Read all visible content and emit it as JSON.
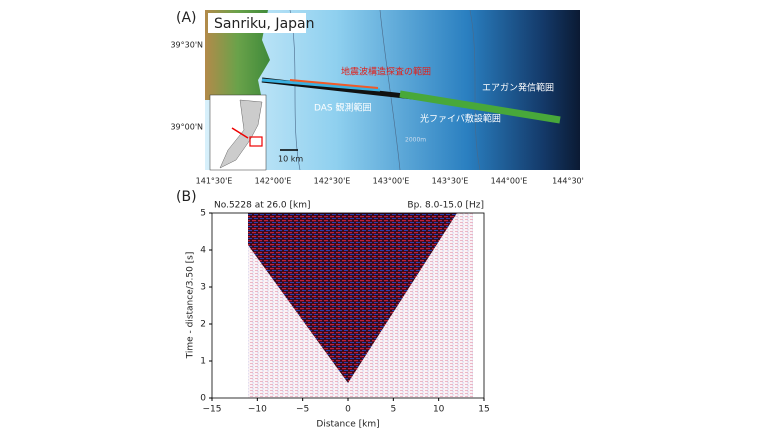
{
  "panel_a": {
    "label": "(A)",
    "title": "Sanriku, Japan",
    "lat_labels": [
      "39°30'N",
      "39°00'N"
    ],
    "lon_labels": [
      "141°30'E",
      "142°00'E",
      "142°30'E",
      "143°00'E",
      "143°30'E",
      "144°00'E",
      "144°30'"
    ],
    "annotations": {
      "seismic": "地震波構造探査の範囲",
      "das": "DAS 観測範囲",
      "airgun": "エアガン発信範囲",
      "fiber": "光ファイバ敷設範囲",
      "contour": "2000m"
    },
    "scale": "10 km"
  },
  "panel_b": {
    "label": "(B)",
    "chart_data": {
      "type": "seismic-section",
      "title": "No.5228 at 26.0 [km]",
      "subtitle": "Bp. 8.0-15.0 [Hz]",
      "x_label": "Distance [km]",
      "y_label": "Time - distance/3.50 [s]",
      "xlim": [
        -15,
        15
      ],
      "xticks": [
        {
          "value": -15,
          "label": "−15"
        },
        {
          "value": -10,
          "label": "−10"
        },
        {
          "value": -5,
          "label": "−5"
        },
        0,
        5,
        10,
        15
      ],
      "ylim": [
        0,
        5
      ],
      "yticks": [
        0,
        1,
        2,
        3,
        4,
        5
      ]
    }
  }
}
